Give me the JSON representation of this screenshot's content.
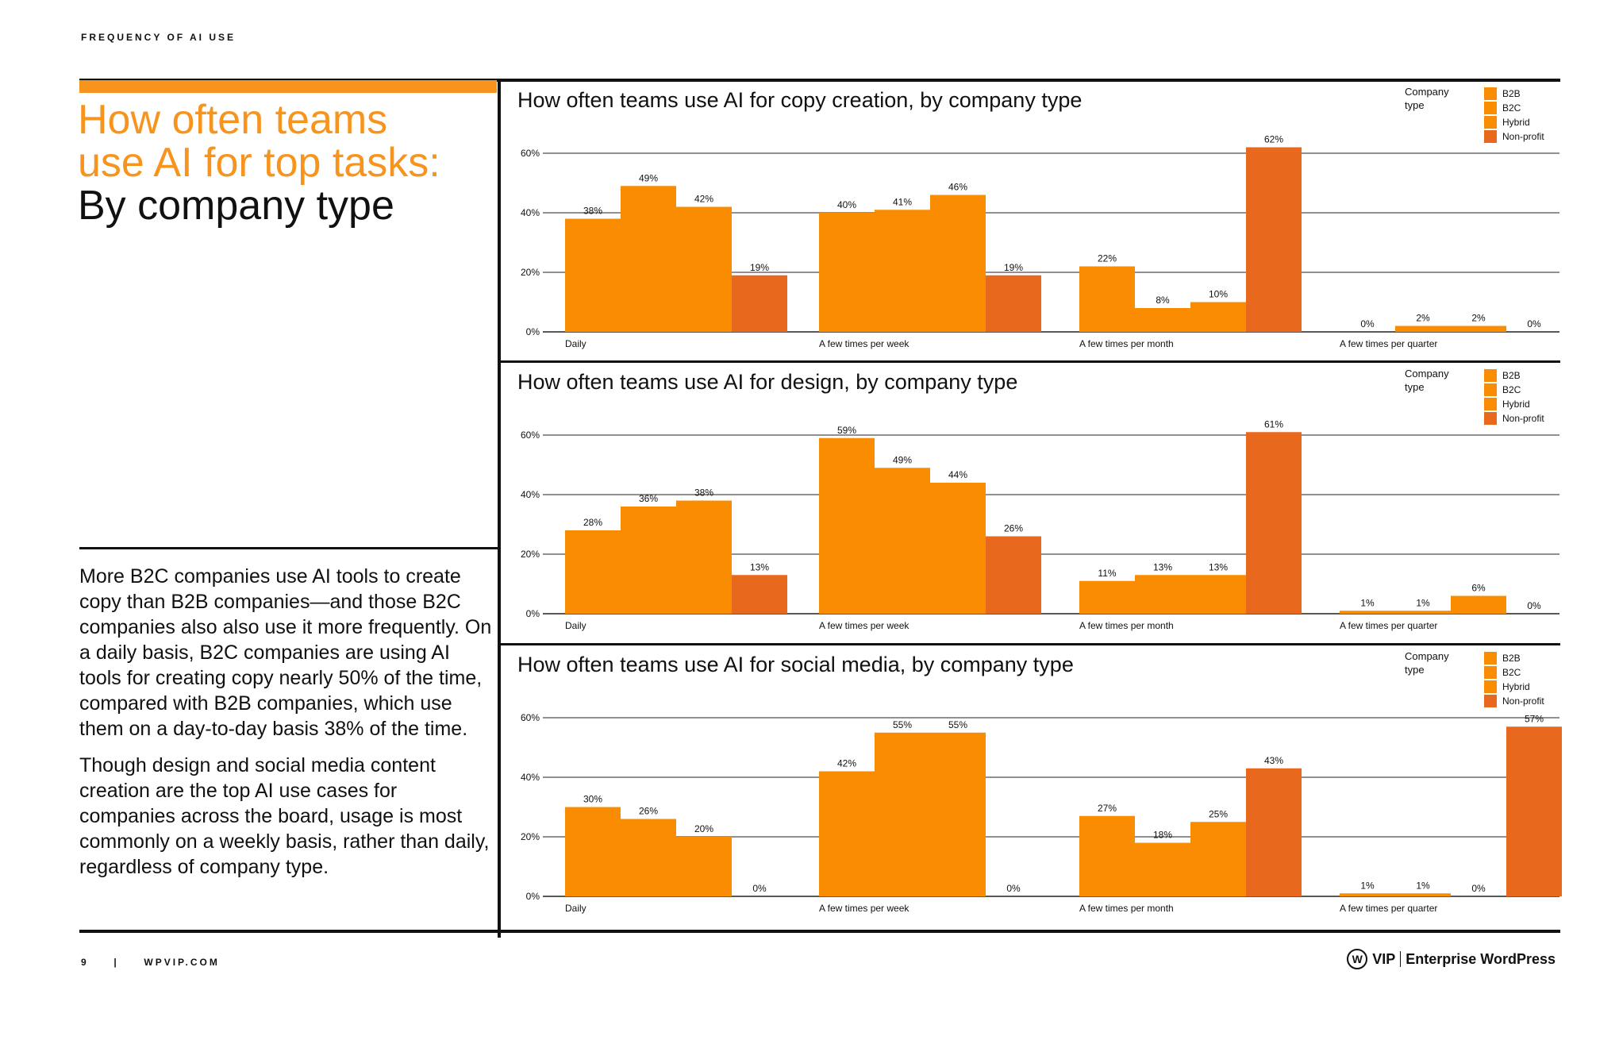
{
  "header": {
    "eyebrow": "FREQUENCY OF AI USE"
  },
  "headline": {
    "line1": "How often teams",
    "line2": "use AI for top tasks:",
    "line3": "By company type"
  },
  "body": {
    "p1": "More B2C companies use AI tools to create copy than B2B companies—and those B2C companies also also use it more frequently. On a daily basis, B2C companies are using AI tools for creating copy nearly 50% of the time, compared with B2B companies, which use them on a day-to-day basis 38% of the time.",
    "p2": "Though design and social media content creation are the top AI use cases for companies across the board, usage is most commonly on a weekly basis, rather than daily, regardless of company type."
  },
  "footer": {
    "page": "9",
    "separator": "|",
    "site": "WPVIP.COM"
  },
  "brand": {
    "logo": "W",
    "vip": "VIP",
    "tagline": "Enterprise WordPress"
  },
  "colors": {
    "accent": "#f7941d",
    "bar": "#f98c00",
    "nonprofit": "#e8691e",
    "text": "#111111"
  },
  "chart_data": [
    {
      "type": "bar",
      "title": "How often teams use AI for copy creation, by company type",
      "legend_title": "Company type",
      "categories": [
        "Daily",
        "A few times per week",
        "A few times per month",
        "A few times per quarter"
      ],
      "series": [
        {
          "name": "B2B",
          "values": [
            38,
            40,
            22,
            0
          ]
        },
        {
          "name": "B2C",
          "values": [
            49,
            41,
            8,
            2
          ]
        },
        {
          "name": "Hybrid",
          "values": [
            42,
            46,
            10,
            2
          ]
        },
        {
          "name": "Non-profit",
          "values": [
            19,
            19,
            62,
            0
          ]
        }
      ],
      "y_ticks": [
        "0%",
        "20%",
        "40%",
        "60%"
      ],
      "ylim": [
        0,
        60
      ]
    },
    {
      "type": "bar",
      "title": "How often teams use AI for design, by company type",
      "legend_title": "Company type",
      "categories": [
        "Daily",
        "A few times per week",
        "A few times per month",
        "A few times per quarter"
      ],
      "series": [
        {
          "name": "B2B",
          "values": [
            28,
            59,
            11,
            1
          ]
        },
        {
          "name": "B2C",
          "values": [
            36,
            49,
            13,
            1
          ]
        },
        {
          "name": "Hybrid",
          "values": [
            38,
            44,
            13,
            6
          ]
        },
        {
          "name": "Non-profit",
          "values": [
            13,
            26,
            61,
            0
          ]
        }
      ],
      "y_ticks": [
        "0%",
        "20%",
        "40%",
        "60%"
      ],
      "ylim": [
        0,
        60
      ]
    },
    {
      "type": "bar",
      "title": "How often teams use AI for social media, by company type",
      "legend_title": "Company type",
      "categories": [
        "Daily",
        "A few times per week",
        "A few times per month",
        "A few times per quarter"
      ],
      "series": [
        {
          "name": "B2B",
          "values": [
            30,
            42,
            27,
            1
          ]
        },
        {
          "name": "B2C",
          "values": [
            26,
            55,
            18,
            1
          ]
        },
        {
          "name": "Hybrid",
          "values": [
            20,
            55,
            25,
            0
          ]
        },
        {
          "name": "Non-profit",
          "values": [
            0,
            0,
            43,
            57
          ]
        }
      ],
      "y_ticks": [
        "0%",
        "20%",
        "40%",
        "60%"
      ],
      "ylim": [
        0,
        60
      ]
    }
  ]
}
